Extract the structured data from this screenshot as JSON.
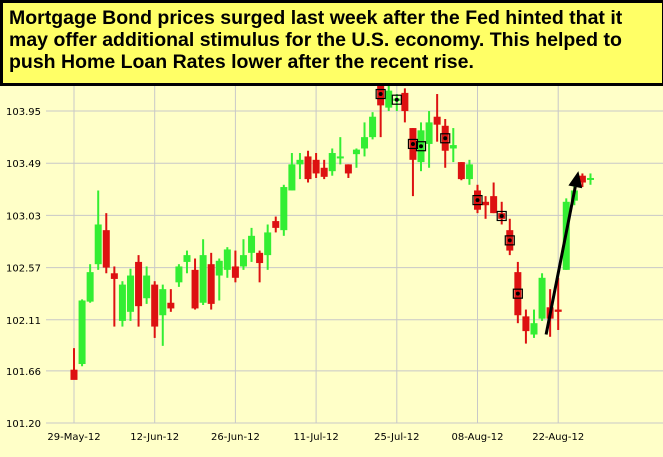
{
  "colors": {
    "background": "#ffffc8",
    "title_bg": "#ffff66",
    "up": "#33ee33",
    "down": "#dd1111",
    "grid": "#c8c8c8",
    "arrow": "#000000"
  },
  "chart_data": {
    "type": "candlestick",
    "title": "Mortgage Bond prices surged last week after the Fed hinted that it may offer additional stimulus for the U.S. economy.  This helped to push Home Loan Rates lower after the recent rise.",
    "xlabel": "",
    "ylabel": "",
    "ylim": [
      101.2,
      104.4
    ],
    "grid": true,
    "y_ticks": [
      "101.20",
      "101.66",
      "102.11",
      "102.57",
      "103.03",
      "103.49",
      "103.95"
    ],
    "x_tick_labels": [
      {
        "label": "29-May-12",
        "index": 0
      },
      {
        "label": "12-Jun-12",
        "index": 10
      },
      {
        "label": "26-Jun-12",
        "index": 20
      },
      {
        "label": "11-Jul-12",
        "index": 30
      },
      {
        "label": "25-Jul-12",
        "index": 40
      },
      {
        "label": "08-Aug-12",
        "index": 50
      },
      {
        "label": "22-Aug-12",
        "index": 60
      }
    ],
    "candles": [
      {
        "o": 101.67,
        "h": 101.86,
        "l": 101.6,
        "c": 101.58
      },
      {
        "o": 101.72,
        "h": 102.29,
        "l": 101.7,
        "c": 102.28
      },
      {
        "o": 102.27,
        "h": 102.6,
        "l": 102.26,
        "c": 102.53
      },
      {
        "o": 102.6,
        "h": 103.25,
        "l": 102.55,
        "c": 102.95
      },
      {
        "o": 102.9,
        "h": 103.05,
        "l": 102.52,
        "c": 102.57
      },
      {
        "o": 102.52,
        "h": 102.58,
        "l": 102.05,
        "c": 102.47
      },
      {
        "o": 102.1,
        "h": 102.45,
        "l": 102.05,
        "c": 102.42
      },
      {
        "o": 102.18,
        "h": 102.56,
        "l": 102.1,
        "c": 102.5
      },
      {
        "o": 102.62,
        "h": 102.68,
        "l": 102.05,
        "c": 102.23
      },
      {
        "o": 102.3,
        "h": 102.58,
        "l": 102.25,
        "c": 102.5
      },
      {
        "o": 102.42,
        "h": 102.45,
        "l": 101.95,
        "c": 102.05
      },
      {
        "o": 102.15,
        "h": 102.42,
        "l": 101.88,
        "c": 102.38
      },
      {
        "o": 102.26,
        "h": 102.38,
        "l": 102.18,
        "c": 102.21
      },
      {
        "o": 102.44,
        "h": 102.6,
        "l": 102.4,
        "c": 102.58
      },
      {
        "o": 102.62,
        "h": 102.72,
        "l": 102.52,
        "c": 102.68
      },
      {
        "o": 102.55,
        "h": 102.65,
        "l": 102.2,
        "c": 102.21
      },
      {
        "o": 102.26,
        "h": 102.82,
        "l": 102.24,
        "c": 102.68
      },
      {
        "o": 102.6,
        "h": 102.7,
        "l": 102.2,
        "c": 102.25
      },
      {
        "o": 102.5,
        "h": 102.65,
        "l": 102.28,
        "c": 102.63
      },
      {
        "o": 102.55,
        "h": 102.75,
        "l": 102.48,
        "c": 102.73
      },
      {
        "o": 102.58,
        "h": 102.72,
        "l": 102.44,
        "c": 102.48
      },
      {
        "o": 102.58,
        "h": 102.82,
        "l": 102.55,
        "c": 102.68
      },
      {
        "o": 102.7,
        "h": 102.92,
        "l": 102.62,
        "c": 102.85
      },
      {
        "o": 102.7,
        "h": 102.72,
        "l": 102.44,
        "c": 102.61
      },
      {
        "o": 102.68,
        "h": 102.95,
        "l": 102.55,
        "c": 102.88
      },
      {
        "o": 102.98,
        "h": 103.02,
        "l": 102.88,
        "c": 102.92
      },
      {
        "o": 102.9,
        "h": 103.3,
        "l": 102.85,
        "c": 103.28
      },
      {
        "o": 103.25,
        "h": 103.58,
        "l": 103.25,
        "c": 103.48
      },
      {
        "o": 103.48,
        "h": 103.58,
        "l": 103.35,
        "c": 103.52
      },
      {
        "o": 103.55,
        "h": 103.6,
        "l": 103.32,
        "c": 103.35
      },
      {
        "o": 103.52,
        "h": 103.58,
        "l": 103.36,
        "c": 103.4
      },
      {
        "o": 103.45,
        "h": 103.52,
        "l": 103.35,
        "c": 103.37
      },
      {
        "o": 103.42,
        "h": 103.62,
        "l": 103.38,
        "c": 103.58
      },
      {
        "o": 103.55,
        "h": 103.72,
        "l": 103.48,
        "c": 103.55
      },
      {
        "o": 103.48,
        "h": 103.48,
        "l": 103.36,
        "c": 103.4
      },
      {
        "o": 103.57,
        "h": 103.62,
        "l": 103.45,
        "c": 103.61
      },
      {
        "o": 103.62,
        "h": 103.85,
        "l": 103.55,
        "c": 103.72
      },
      {
        "o": 103.72,
        "h": 103.94,
        "l": 103.7,
        "c": 103.9
      },
      {
        "o": 104.2,
        "h": 104.25,
        "l": 103.72,
        "c": 104.0
      },
      {
        "o": 103.98,
        "h": 104.24,
        "l": 103.95,
        "c": 104.13
      },
      {
        "o": 104.04,
        "h": 104.1,
        "l": 103.95,
        "c": 104.06
      },
      {
        "o": 104.11,
        "h": 104.15,
        "l": 103.85,
        "c": 103.95
      },
      {
        "o": 103.8,
        "h": 103.8,
        "l": 103.2,
        "c": 103.52
      },
      {
        "o": 103.5,
        "h": 103.85,
        "l": 103.42,
        "c": 103.78
      },
      {
        "o": 103.66,
        "h": 103.95,
        "l": 103.45,
        "c": 103.85
      },
      {
        "o": 103.9,
        "h": 104.1,
        "l": 103.68,
        "c": 103.83
      },
      {
        "o": 103.82,
        "h": 103.88,
        "l": 103.45,
        "c": 103.6
      },
      {
        "o": 103.62,
        "h": 103.8,
        "l": 103.5,
        "c": 103.65
      },
      {
        "o": 103.5,
        "h": 103.5,
        "l": 103.34,
        "c": 103.35
      },
      {
        "o": 103.35,
        "h": 103.52,
        "l": 103.3,
        "c": 103.48
      },
      {
        "o": 103.25,
        "h": 103.3,
        "l": 103.05,
        "c": 103.08
      },
      {
        "o": 103.15,
        "h": 103.2,
        "l": 103.0,
        "c": 103.12
      },
      {
        "o": 103.2,
        "h": 103.32,
        "l": 103.05,
        "c": 103.05
      },
      {
        "o": 103.05,
        "h": 103.15,
        "l": 102.95,
        "c": 103.0
      },
      {
        "o": 102.9,
        "h": 103.0,
        "l": 102.68,
        "c": 102.72
      },
      {
        "o": 102.53,
        "h": 102.62,
        "l": 102.08,
        "c": 102.15
      },
      {
        "o": 102.14,
        "h": 102.2,
        "l": 101.9,
        "c": 102.01
      },
      {
        "o": 101.98,
        "h": 102.2,
        "l": 101.95,
        "c": 102.08
      },
      {
        "o": 102.12,
        "h": 102.52,
        "l": 102.1,
        "c": 102.48
      },
      {
        "o": 102.22,
        "h": 102.38,
        "l": 101.96,
        "c": 102.12
      },
      {
        "o": 102.2,
        "h": 102.48,
        "l": 102.02,
        "c": 102.18
      },
      {
        "o": 102.55,
        "h": 103.18,
        "l": 102.55,
        "c": 103.15
      },
      {
        "o": 103.16,
        "h": 103.3,
        "l": 103.12,
        "c": 103.25
      },
      {
        "o": 103.38,
        "h": 103.4,
        "l": 103.28,
        "c": 103.32
      },
      {
        "o": 103.35,
        "h": 103.4,
        "l": 103.3,
        "c": 103.36
      }
    ],
    "markers": [
      38,
      40,
      42,
      43,
      46,
      50,
      53,
      54,
      55
    ],
    "annotations": [
      {
        "type": "arrow",
        "from": {
          "index": 58.5,
          "value": 101.98
        },
        "to": {
          "index": 62.5,
          "value": 103.42
        }
      }
    ]
  }
}
